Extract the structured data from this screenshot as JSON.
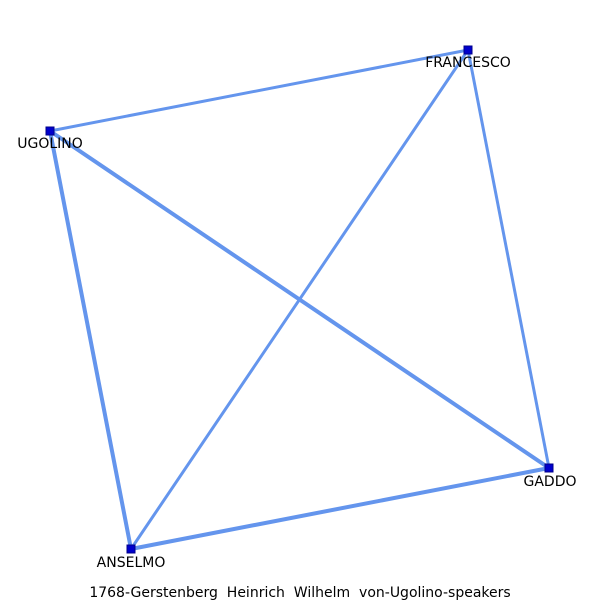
{
  "graph": {
    "nodes": [
      {
        "id": "FRANCESCO",
        "label": "FRANCESCO"
      },
      {
        "id": "UGOLINO",
        "label": "UGOLINO"
      },
      {
        "id": "GADDO",
        "label": "GADDO"
      },
      {
        "id": "ANSELMO",
        "label": "ANSELMO"
      }
    ],
    "edges": [
      {
        "source": "UGOLINO",
        "target": "FRANCESCO",
        "weight": 1
      },
      {
        "source": "FRANCESCO",
        "target": "GADDO",
        "weight": 1
      },
      {
        "source": "FRANCESCO",
        "target": "ANSELMO",
        "weight": 1
      },
      {
        "source": "UGOLINO",
        "target": "GADDO",
        "weight": 2
      },
      {
        "source": "UGOLINO",
        "target": "ANSELMO",
        "weight": 2
      },
      {
        "source": "ANSELMO",
        "target": "GADDO",
        "weight": 2
      }
    ]
  },
  "caption": "1768-Gerstenberg_Heinrich_Wilhelm_von-Ugolino-speakers",
  "colors": {
    "edge": "#6495ed",
    "node": "#0000cd",
    "background": "#ffffff"
  }
}
